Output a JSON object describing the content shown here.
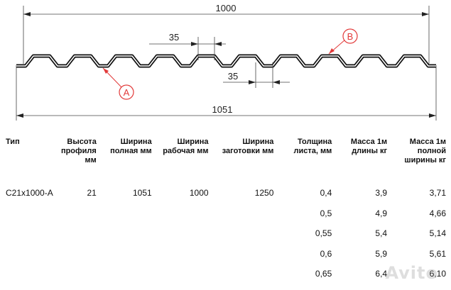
{
  "drawing": {
    "overall_width": "1000",
    "full_width": "1051",
    "crest_width": "35",
    "valley_width": "35",
    "callout_a": "A",
    "callout_b": "B"
  },
  "table": {
    "headers": [
      "Тип",
      "Высота профиля мм",
      "Ширина полная мм",
      "Ширина рабочая мм",
      "Ширина заготовки мм",
      "Толщина листа, мм",
      "Масса 1м длины кг",
      "Масса 1м полной ширины кг"
    ],
    "rows": [
      [
        "С21х1000-А",
        "21",
        "1051",
        "1000",
        "1250",
        "0,4",
        "3,9",
        "3,71"
      ],
      [
        "",
        "",
        "",
        "",
        "",
        "0,5",
        "4,9",
        "4,66"
      ],
      [
        "",
        "",
        "",
        "",
        "",
        "0,55",
        "5,4",
        "5,14"
      ],
      [
        "",
        "",
        "",
        "",
        "",
        "0,6",
        "5,9",
        "5,61"
      ],
      [
        "",
        "",
        "",
        "",
        "",
        "0,65",
        "6,4",
        "6,10"
      ]
    ]
  },
  "watermark": "Avito",
  "colors": {
    "callout": "#e23a3a",
    "line": "#111111"
  }
}
